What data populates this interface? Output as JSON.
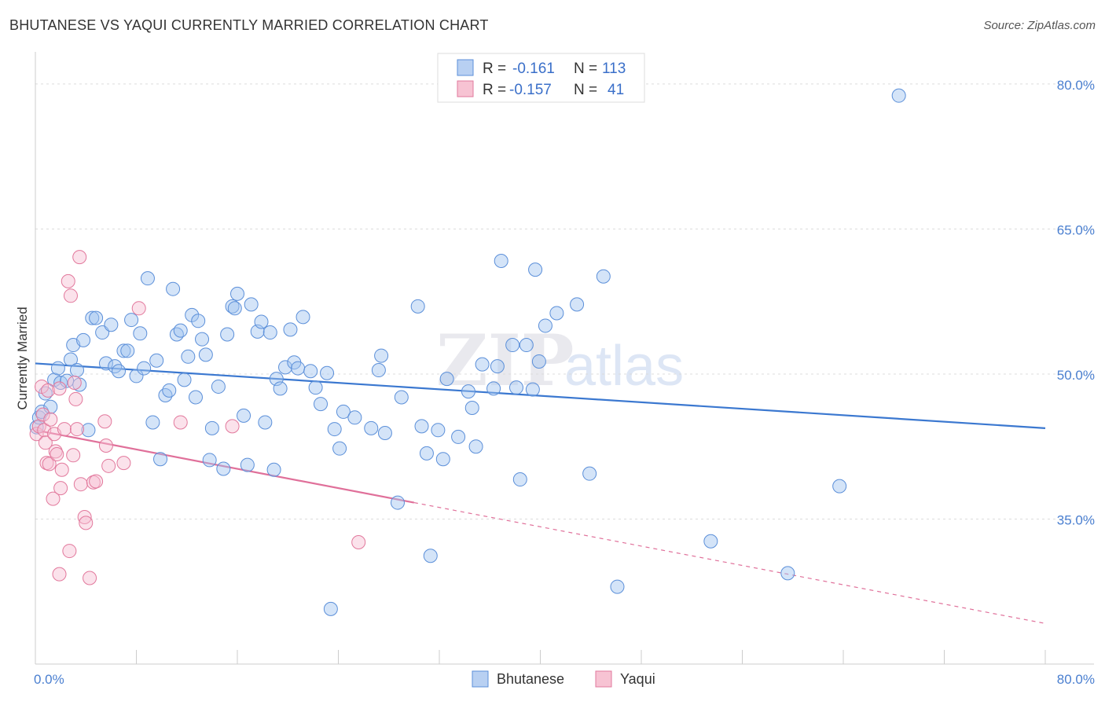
{
  "header": {
    "title": "BHUTANESE VS YAQUI CURRENTLY MARRIED CORRELATION CHART",
    "source": "Source: ZipAtlas.com"
  },
  "watermark": {
    "zip": "ZIP",
    "atlas": "atlas"
  },
  "legend": {
    "r_label": "R =",
    "n_label": "N =",
    "rows": [
      {
        "name": "Bhutanese",
        "r": "-0.161",
        "n": "113",
        "fill": "#b8d0f2",
        "stroke": "#5b8fd9"
      },
      {
        "name": "Yaqui",
        "r": "-0.157",
        "n": "41",
        "fill": "#f7c3d3",
        "stroke": "#e2789c"
      }
    ]
  },
  "chart_data": {
    "type": "scatter",
    "title": "BHUTANESE VS YAQUI CURRENTLY MARRIED CORRELATION CHART",
    "xlabel": "",
    "ylabel": "Currently Married",
    "xlim": [
      0,
      80
    ],
    "ylim": [
      20,
      83
    ],
    "x_tick_labels": [
      "0.0%",
      "80.0%"
    ],
    "y_ticks": [
      35,
      50,
      65,
      80
    ],
    "y_tick_labels": [
      "35.0%",
      "50.0%",
      "65.0%",
      "80.0%"
    ],
    "grid": true,
    "colors": {
      "Bhutanese": "#3b78d0",
      "Yaqui": "#e0709a"
    },
    "series": [
      {
        "name": "Bhutanese",
        "trend": {
          "x": [
            0,
            80
          ],
          "y": [
            51.1,
            44.4
          ],
          "dashed_from": null
        },
        "points": [
          [
            0.1,
            44.5
          ],
          [
            0.3,
            45.5
          ],
          [
            0.5,
            46.1
          ],
          [
            0.8,
            48.0
          ],
          [
            1.2,
            46.6
          ],
          [
            1.5,
            49.4
          ],
          [
            1.8,
            50.6
          ],
          [
            2.0,
            49.1
          ],
          [
            2.5,
            49.3
          ],
          [
            2.8,
            51.5
          ],
          [
            3.0,
            53.0
          ],
          [
            3.3,
            50.4
          ],
          [
            3.5,
            48.9
          ],
          [
            3.8,
            53.5
          ],
          [
            4.2,
            44.2
          ],
          [
            4.5,
            55.8
          ],
          [
            4.8,
            55.8
          ],
          [
            5.3,
            54.3
          ],
          [
            5.6,
            51.1
          ],
          [
            6.0,
            55.1
          ],
          [
            6.3,
            50.8
          ],
          [
            6.6,
            50.3
          ],
          [
            7.0,
            52.4
          ],
          [
            7.3,
            52.4
          ],
          [
            7.6,
            55.6
          ],
          [
            8.0,
            49.8
          ],
          [
            8.3,
            54.2
          ],
          [
            8.6,
            50.6
          ],
          [
            8.9,
            59.9
          ],
          [
            9.3,
            45.0
          ],
          [
            9.6,
            51.4
          ],
          [
            9.9,
            41.2
          ],
          [
            10.3,
            47.8
          ],
          [
            10.6,
            48.3
          ],
          [
            10.9,
            58.8
          ],
          [
            11.2,
            54.1
          ],
          [
            11.5,
            54.5
          ],
          [
            11.8,
            49.4
          ],
          [
            12.1,
            51.8
          ],
          [
            12.4,
            56.1
          ],
          [
            12.7,
            47.6
          ],
          [
            12.9,
            55.5
          ],
          [
            13.2,
            53.6
          ],
          [
            13.5,
            52.0
          ],
          [
            13.8,
            41.1
          ],
          [
            14.0,
            44.4
          ],
          [
            14.5,
            48.7
          ],
          [
            14.9,
            40.2
          ],
          [
            15.2,
            54.1
          ],
          [
            15.6,
            57.0
          ],
          [
            15.8,
            56.8
          ],
          [
            16.0,
            58.3
          ],
          [
            16.5,
            45.7
          ],
          [
            16.8,
            40.6
          ],
          [
            17.1,
            57.2
          ],
          [
            17.6,
            54.4
          ],
          [
            17.9,
            55.4
          ],
          [
            18.2,
            45.0
          ],
          [
            18.6,
            54.3
          ],
          [
            18.9,
            40.1
          ],
          [
            19.1,
            49.5
          ],
          [
            19.4,
            48.5
          ],
          [
            19.8,
            50.7
          ],
          [
            20.2,
            54.6
          ],
          [
            20.5,
            51.2
          ],
          [
            20.8,
            50.6
          ],
          [
            21.2,
            55.9
          ],
          [
            21.8,
            50.3
          ],
          [
            22.2,
            48.6
          ],
          [
            22.6,
            46.9
          ],
          [
            23.1,
            50.1
          ],
          [
            23.4,
            25.7
          ],
          [
            23.7,
            44.3
          ],
          [
            24.1,
            42.3
          ],
          [
            24.4,
            46.1
          ],
          [
            25.3,
            45.5
          ],
          [
            26.6,
            44.4
          ],
          [
            27.2,
            50.4
          ],
          [
            27.4,
            51.9
          ],
          [
            27.7,
            43.9
          ],
          [
            28.7,
            36.7
          ],
          [
            29.0,
            47.6
          ],
          [
            30.3,
            57.0
          ],
          [
            30.6,
            44.6
          ],
          [
            31.0,
            41.8
          ],
          [
            31.3,
            31.2
          ],
          [
            31.9,
            44.2
          ],
          [
            32.3,
            41.2
          ],
          [
            32.6,
            49.5
          ],
          [
            33.5,
            43.5
          ],
          [
            34.3,
            48.2
          ],
          [
            34.6,
            46.5
          ],
          [
            34.9,
            42.5
          ],
          [
            35.4,
            51.0
          ],
          [
            36.3,
            48.5
          ],
          [
            36.6,
            50.8
          ],
          [
            36.9,
            61.7
          ],
          [
            37.8,
            53.0
          ],
          [
            38.1,
            48.6
          ],
          [
            38.4,
            39.1
          ],
          [
            38.9,
            53.0
          ],
          [
            39.4,
            48.4
          ],
          [
            39.6,
            60.8
          ],
          [
            39.9,
            51.3
          ],
          [
            40.4,
            55.0
          ],
          [
            41.3,
            56.3
          ],
          [
            42.9,
            57.2
          ],
          [
            43.9,
            39.7
          ],
          [
            45.0,
            60.1
          ],
          [
            46.1,
            28.0
          ],
          [
            53.5,
            32.7
          ],
          [
            59.6,
            29.4
          ],
          [
            63.7,
            38.4
          ],
          [
            68.4,
            78.8
          ]
        ]
      },
      {
        "name": "Yaqui",
        "trend": {
          "x": [
            0,
            80
          ],
          "y": [
            44.2,
            24.2
          ],
          "dashed_from": 30
        },
        "points": [
          [
            0.1,
            43.8
          ],
          [
            0.3,
            44.6
          ],
          [
            0.5,
            48.7
          ],
          [
            0.6,
            45.8
          ],
          [
            0.7,
            44.2
          ],
          [
            0.8,
            42.9
          ],
          [
            0.9,
            40.8
          ],
          [
            1.0,
            48.3
          ],
          [
            1.1,
            40.7
          ],
          [
            1.2,
            45.3
          ],
          [
            1.4,
            37.1
          ],
          [
            1.5,
            43.8
          ],
          [
            1.6,
            42.0
          ],
          [
            1.7,
            41.7
          ],
          [
            1.9,
            48.5
          ],
          [
            2.0,
            38.2
          ],
          [
            2.1,
            40.1
          ],
          [
            2.3,
            44.3
          ],
          [
            2.6,
            59.6
          ],
          [
            2.7,
            31.7
          ],
          [
            2.8,
            58.1
          ],
          [
            3.0,
            41.6
          ],
          [
            3.1,
            49.1
          ],
          [
            3.2,
            47.4
          ],
          [
            3.3,
            44.3
          ],
          [
            3.5,
            62.1
          ],
          [
            3.6,
            38.6
          ],
          [
            3.9,
            35.2
          ],
          [
            4.0,
            34.6
          ],
          [
            4.3,
            28.9
          ],
          [
            4.6,
            38.8
          ],
          [
            4.8,
            38.9
          ],
          [
            5.5,
            45.1
          ],
          [
            5.6,
            42.6
          ],
          [
            5.8,
            40.5
          ],
          [
            7.0,
            40.8
          ],
          [
            8.2,
            56.8
          ],
          [
            11.5,
            45.0
          ],
          [
            15.6,
            44.6
          ],
          [
            25.6,
            32.6
          ],
          [
            1.9,
            29.3
          ]
        ]
      }
    ]
  },
  "bottom_legend": {
    "items": [
      "Bhutanese",
      "Yaqui"
    ]
  }
}
